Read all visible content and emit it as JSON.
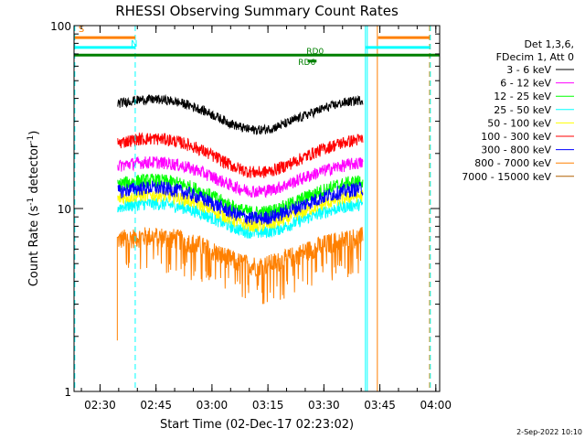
{
  "chart_data": {
    "type": "line",
    "title": "RHESSI Observing Summary Count Rates",
    "xlabel": "Start Time (02-Dec-17 02:23:02)",
    "ylabel": "Count Rate (s",
    "ylabel_sup": "-1",
    "ylabel_mid": " detector",
    "ylabel_end": ")",
    "y_scale": "log",
    "ylim": [
      1,
      100
    ],
    "xlim_minutes": [
      0,
      98
    ],
    "x_ticks": [
      {
        "label": "02:30",
        "min": 6.97
      },
      {
        "label": "02:45",
        "min": 21.97
      },
      {
        "label": "03:00",
        "min": 36.97
      },
      {
        "label": "03:15",
        "min": 51.97
      },
      {
        "label": "03:30",
        "min": 66.97
      },
      {
        "label": "03:45",
        "min": 81.97
      },
      {
        "label": "04:00",
        "min": 96.97
      }
    ],
    "y_ticks": [
      {
        "label": "1",
        "value": 1
      },
      {
        "label": "10",
        "value": 10
      },
      {
        "label": "100",
        "value": 100
      }
    ],
    "legend_header": [
      "Det 1,3,6,",
      "FDecim 1, Att 0"
    ],
    "data_start_min": 11.7,
    "data_end_min": 77.4,
    "series": [
      {
        "name": "3 - 6 keV",
        "color": "#000000",
        "base": 35,
        "amp": 0.13,
        "noise": 0.06
      },
      {
        "name": "6 - 12 keV",
        "color": "#ff00ff",
        "base": 16,
        "amp": 0.12,
        "noise": 0.08
      },
      {
        "name": "12 - 25 keV",
        "color": "#00ff00",
        "base": 12.5,
        "amp": 0.14,
        "noise": 0.09
      },
      {
        "name": "25 - 50 keV",
        "color": "#00ffff",
        "base": 9.5,
        "amp": 0.12,
        "noise": 0.08
      },
      {
        "name": "50 - 100 keV",
        "color": "#ffff00",
        "base": 10.5,
        "amp": 0.13,
        "noise": 0.08
      },
      {
        "name": "100 - 300 keV",
        "color": "#ff0000",
        "base": 21,
        "amp": 0.15,
        "noise": 0.08
      },
      {
        "name": "300 - 800 keV",
        "color": "#0000ff",
        "base": 11.5,
        "amp": 0.13,
        "noise": 0.09
      },
      {
        "name": "800 - 7000 keV",
        "color": "#ff8000",
        "base": 6.3,
        "amp": 0.12,
        "noise": 0.13
      },
      {
        "name": "7000 - 15000 keV",
        "color": "#b06000",
        "base": 0,
        "amp": 0,
        "noise": 0
      }
    ],
    "flags": [
      {
        "label": "S",
        "color": "#ff8000",
        "x_min": 0.2,
        "x_end": 16.4,
        "value": 86
      },
      {
        "label": "N",
        "color": "#00ffff",
        "x_min": 0.2,
        "x_end": 16.4,
        "value": 76
      },
      {
        "label": "",
        "color": "#ff8000",
        "x_min": 81.5,
        "x_end": 95.3,
        "value": 86
      },
      {
        "label": "",
        "color": "#00ffff",
        "x_min": 78.2,
        "x_end": 95.3,
        "value": 76
      }
    ],
    "saa_bar": {
      "color": "#008000",
      "x_min": 0,
      "x_end": 98,
      "value": 69
    },
    "rd_labels": [
      {
        "label": "RD0",
        "x_min": 62.3,
        "value": 70
      },
      {
        "label": "RD6",
        "x_min": 60.1,
        "value": 61
      }
    ],
    "vlines": [
      {
        "x_min": 0.2,
        "color": "#00ffff",
        "style": "dash"
      },
      {
        "x_min": 16.4,
        "color": "#00ffff",
        "style": "dash"
      },
      {
        "x_min": 78.1,
        "color": "#00ffff",
        "style": "solid"
      },
      {
        "x_min": 78.6,
        "color": "#00ffff",
        "style": "solid"
      },
      {
        "x_min": 81.3,
        "color": "#ff8000",
        "style": "solid"
      },
      {
        "x_min": 95.3,
        "color": "#ff8000",
        "style": "dash"
      },
      {
        "x_min": 95.5,
        "color": "#00ffff",
        "style": "dash"
      }
    ]
  },
  "footer": {
    "date": "2-Sep-2022 10:10"
  }
}
